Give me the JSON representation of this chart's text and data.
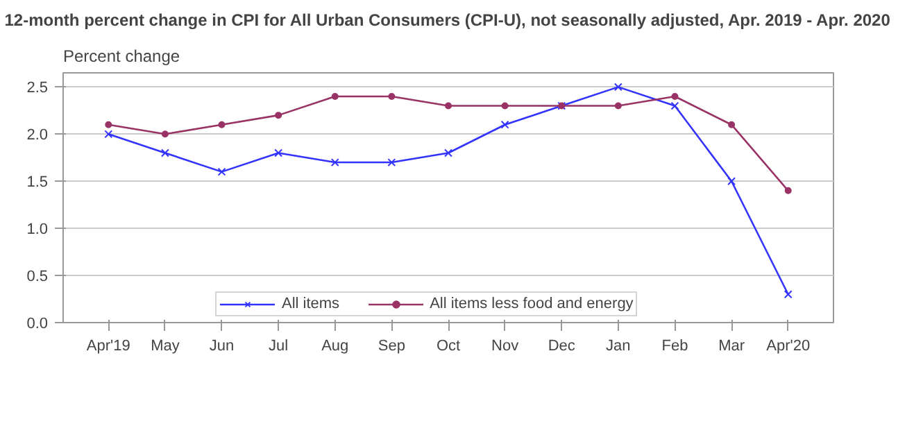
{
  "chart_data": {
    "type": "line",
    "title": "12-month percent change in CPI for All Urban Consumers (CPI-U), not seasonally adjusted, Apr. 2019 - Apr. 2020",
    "ylabel": "Percent change",
    "categories": [
      "Apr'19",
      "May",
      "Jun",
      "Jul",
      "Aug",
      "Sep",
      "Oct",
      "Nov",
      "Dec",
      "Jan",
      "Feb",
      "Mar",
      "Apr'20"
    ],
    "series": [
      {
        "name": "All items",
        "color": "#3333ff",
        "marker": "cross",
        "values": [
          2.0,
          1.8,
          1.6,
          1.8,
          1.7,
          1.7,
          1.8,
          2.1,
          2.3,
          2.5,
          2.3,
          1.5,
          0.3
        ]
      },
      {
        "name": "All items less food and energy",
        "color": "#993366",
        "marker": "circle",
        "values": [
          2.1,
          2.0,
          2.1,
          2.2,
          2.4,
          2.4,
          2.3,
          2.3,
          2.3,
          2.3,
          2.4,
          2.1,
          1.4
        ]
      }
    ],
    "ylim": [
      0,
      2.65
    ],
    "yticks": [
      {
        "value": 0,
        "label": "0.0"
      },
      {
        "value": 0.5,
        "label": "0.5"
      },
      {
        "value": 1,
        "label": "1.0"
      },
      {
        "value": 1.5,
        "label": "1.5"
      },
      {
        "value": 2,
        "label": "2.0"
      },
      {
        "value": 2.5,
        "label": "2.5"
      }
    ],
    "grid": "y",
    "legend": "bottom",
    "line_style": "solid"
  }
}
